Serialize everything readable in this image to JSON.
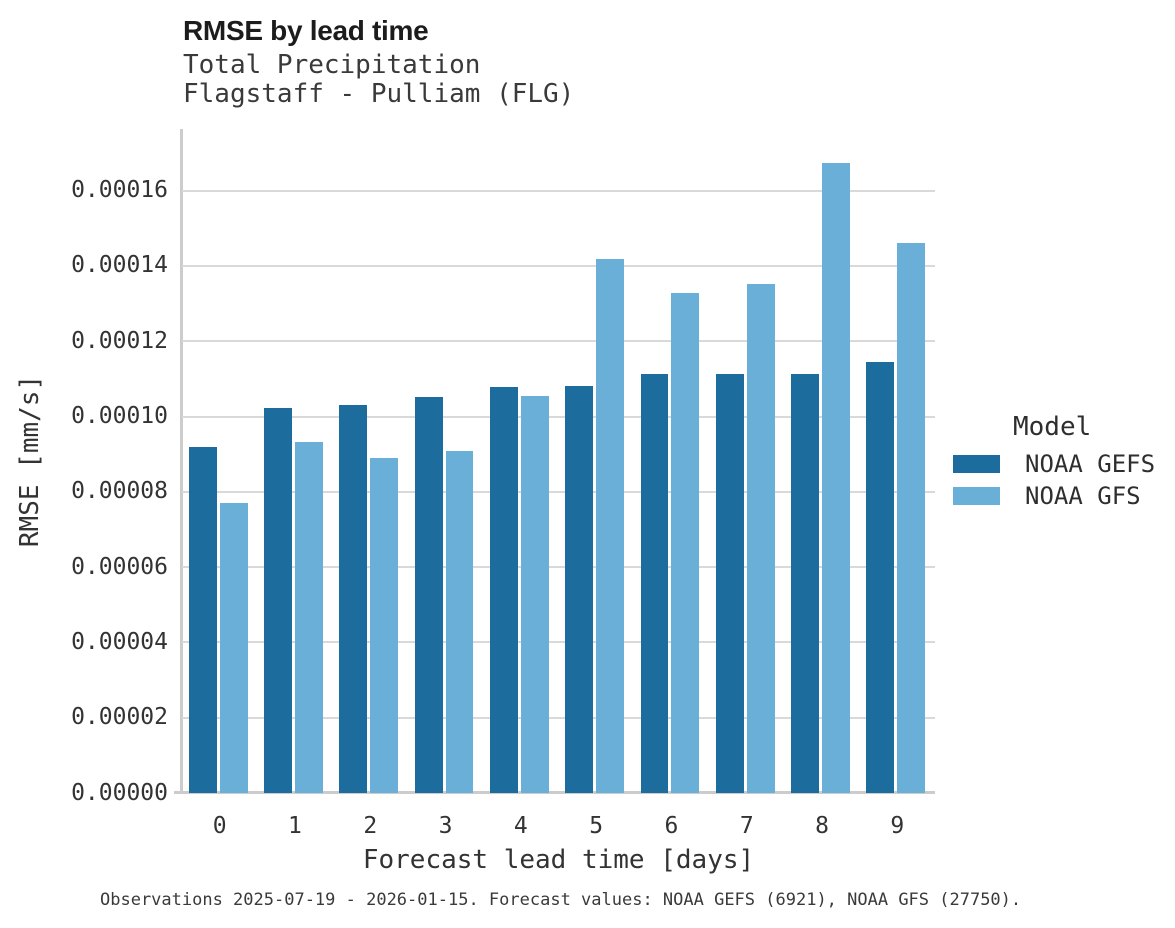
{
  "chart_data": {
    "type": "bar",
    "title": "RMSE by lead time",
    "subtitle": [
      "Total Precipitation",
      "Flagstaff - Pulliam (FLG)"
    ],
    "xlabel": "Forecast lead time [days]",
    "ylabel": "RMSE [mm/s]",
    "categories": [
      "0",
      "1",
      "2",
      "3",
      "4",
      "5",
      "6",
      "7",
      "8",
      "9"
    ],
    "series": [
      {
        "name": "NOAA GEFS",
        "color": "#1c6c9e",
        "values": [
          9.18e-05,
          0.0001022,
          0.000103,
          0.0001052,
          0.0001078,
          0.000108,
          0.0001113,
          0.0001113,
          0.0001113,
          0.0001144
        ]
      },
      {
        "name": "NOAA GFS",
        "color": "#69afd8",
        "values": [
          7.71e-05,
          9.33e-05,
          8.89e-05,
          9.09e-05,
          0.0001055,
          0.0001419,
          0.0001327,
          0.0001352,
          0.0001674,
          0.0001462
        ]
      }
    ],
    "ylim": [
      0,
      0.00017636
    ],
    "yticks": [
      0,
      2e-05,
      4e-05,
      6e-05,
      8e-05,
      0.0001,
      0.00012,
      0.00014,
      0.00016
    ],
    "ytick_labels": [
      "0.00000",
      "0.00002",
      "0.00004",
      "0.00006",
      "0.00008",
      "0.00010",
      "0.00012",
      "0.00014",
      "0.00016"
    ],
    "grid": true,
    "legend_title": "Model",
    "legend_position": "right"
  },
  "caption": "Observations 2025-07-19 - 2026-01-15. Forecast values: NOAA GEFS (6921), NOAA GFS (27750).",
  "colors": {
    "gefs_bar": "#1c6c9e",
    "gfs_bar": "#69afd8",
    "gridline": "#d9d9d9",
    "axis_line": "#cccccc",
    "text": "#333333"
  }
}
